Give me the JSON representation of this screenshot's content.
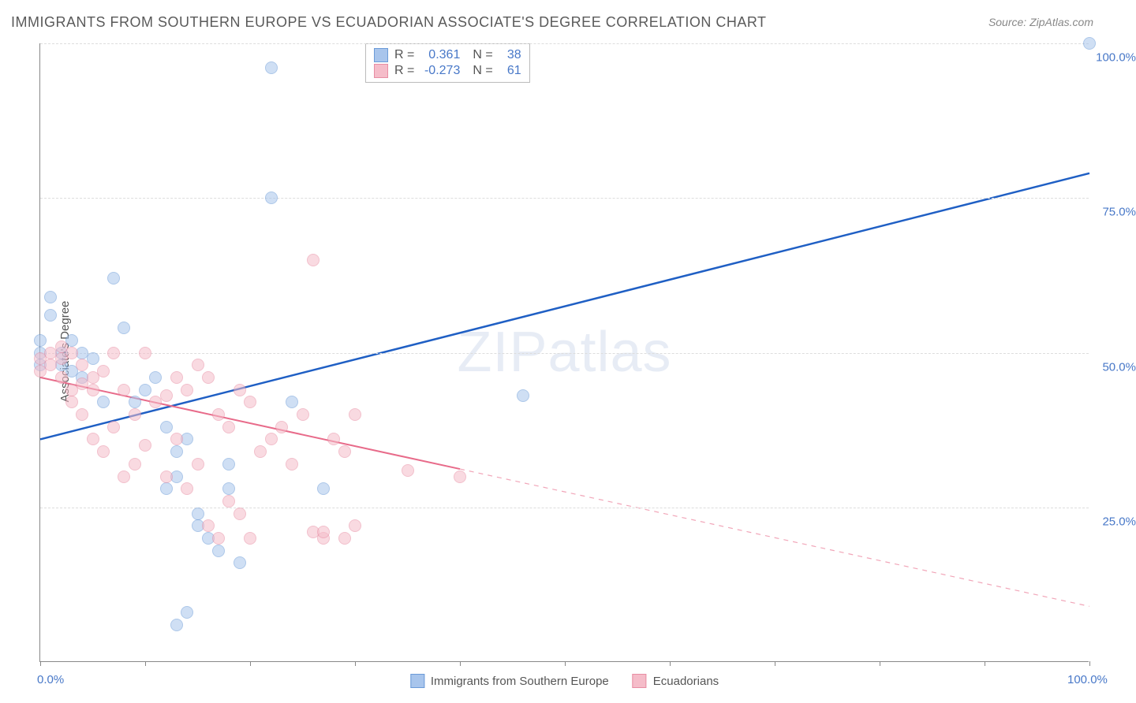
{
  "title": "IMMIGRANTS FROM SOUTHERN EUROPE VS ECUADORIAN ASSOCIATE'S DEGREE CORRELATION CHART",
  "source": "Source: ZipAtlas.com",
  "watermark": "ZIPatlas",
  "y_axis_title": "Associate's Degree",
  "chart": {
    "type": "scatter-with-trend",
    "background_color": "#ffffff",
    "grid_color": "#dddddd",
    "axis_color": "#888888",
    "label_color": "#4878c8",
    "xlim": [
      0,
      100
    ],
    "ylim": [
      0,
      100
    ],
    "x_ticks": [
      0,
      10,
      20,
      30,
      40,
      50,
      60,
      70,
      80,
      90,
      100
    ],
    "x_tick_labels": {
      "0": "0.0%",
      "100": "100.0%"
    },
    "y_grid": [
      25,
      50,
      75,
      100
    ],
    "y_tick_labels": {
      "25": "25.0%",
      "50": "50.0%",
      "75": "75.0%",
      "100": "100.0%"
    },
    "point_radius": 8,
    "point_opacity": 0.55,
    "series": [
      {
        "name": "Immigrants from Southern Europe",
        "color_fill": "#a8c5ec",
        "color_stroke": "#6b9bd8",
        "trend_color": "#1f5fc4",
        "trend_width": 2.5,
        "trend_solid_until_x": 100,
        "R": "0.361",
        "N": "38",
        "trend": {
          "y_at_x0": 36,
          "y_at_x100": 79
        },
        "points": [
          [
            0,
            52
          ],
          [
            0,
            50
          ],
          [
            0,
            48
          ],
          [
            1,
            56
          ],
          [
            1,
            59
          ],
          [
            2,
            50
          ],
          [
            2,
            48
          ],
          [
            3,
            47
          ],
          [
            3,
            52
          ],
          [
            4,
            46
          ],
          [
            4,
            50
          ],
          [
            5,
            49
          ],
          [
            6,
            42
          ],
          [
            7,
            62
          ],
          [
            8,
            54
          ],
          [
            9,
            42
          ],
          [
            10,
            44
          ],
          [
            11,
            46
          ],
          [
            12,
            38
          ],
          [
            13,
            34
          ],
          [
            13,
            30
          ],
          [
            14,
            36
          ],
          [
            15,
            24
          ],
          [
            15,
            22
          ],
          [
            16,
            20
          ],
          [
            17,
            18
          ],
          [
            18,
            32
          ],
          [
            18,
            28
          ],
          [
            19,
            16
          ],
          [
            14,
            8
          ],
          [
            12,
            28
          ],
          [
            13,
            6
          ],
          [
            22,
            75
          ],
          [
            22,
            96
          ],
          [
            24,
            42
          ],
          [
            27,
            28
          ],
          [
            46,
            43
          ],
          [
            100,
            100
          ]
        ]
      },
      {
        "name": "Ecuadorians",
        "color_fill": "#f5bcc9",
        "color_stroke": "#e88da3",
        "trend_color": "#e86b8a",
        "trend_width": 2,
        "trend_solid_until_x": 40,
        "R": "-0.273",
        "N": "61",
        "trend": {
          "y_at_x0": 46,
          "y_at_x100": 9
        },
        "points": [
          [
            0,
            49
          ],
          [
            0,
            47
          ],
          [
            1,
            50
          ],
          [
            1,
            48
          ],
          [
            2,
            51
          ],
          [
            2,
            49
          ],
          [
            2,
            46
          ],
          [
            3,
            50
          ],
          [
            3,
            44
          ],
          [
            3,
            42
          ],
          [
            4,
            48
          ],
          [
            4,
            45
          ],
          [
            4,
            40
          ],
          [
            5,
            46
          ],
          [
            5,
            44
          ],
          [
            5,
            36
          ],
          [
            6,
            47
          ],
          [
            6,
            34
          ],
          [
            7,
            50
          ],
          [
            7,
            38
          ],
          [
            8,
            44
          ],
          [
            8,
            30
          ],
          [
            9,
            40
          ],
          [
            9,
            32
          ],
          [
            10,
            50
          ],
          [
            10,
            35
          ],
          [
            11,
            42
          ],
          [
            12,
            43
          ],
          [
            12,
            30
          ],
          [
            13,
            46
          ],
          [
            13,
            36
          ],
          [
            14,
            44
          ],
          [
            14,
            28
          ],
          [
            15,
            48
          ],
          [
            15,
            32
          ],
          [
            16,
            46
          ],
          [
            16,
            22
          ],
          [
            17,
            40
          ],
          [
            17,
            20
          ],
          [
            18,
            38
          ],
          [
            18,
            26
          ],
          [
            19,
            44
          ],
          [
            19,
            24
          ],
          [
            20,
            42
          ],
          [
            20,
            20
          ],
          [
            21,
            34
          ],
          [
            22,
            36
          ],
          [
            23,
            38
          ],
          [
            24,
            32
          ],
          [
            25,
            40
          ],
          [
            26,
            65
          ],
          [
            27,
            20
          ],
          [
            28,
            36
          ],
          [
            29,
            34
          ],
          [
            26,
            21
          ],
          [
            27,
            21
          ],
          [
            29,
            20
          ],
          [
            30,
            40
          ],
          [
            30,
            22
          ],
          [
            35,
            31
          ],
          [
            40,
            30
          ]
        ]
      }
    ],
    "bottom_legend": [
      {
        "label": "Immigrants from Southern Europe",
        "fill": "#a8c5ec",
        "stroke": "#6b9bd8"
      },
      {
        "label": "Ecuadorians",
        "fill": "#f5bcc9",
        "stroke": "#e88da3"
      }
    ]
  }
}
